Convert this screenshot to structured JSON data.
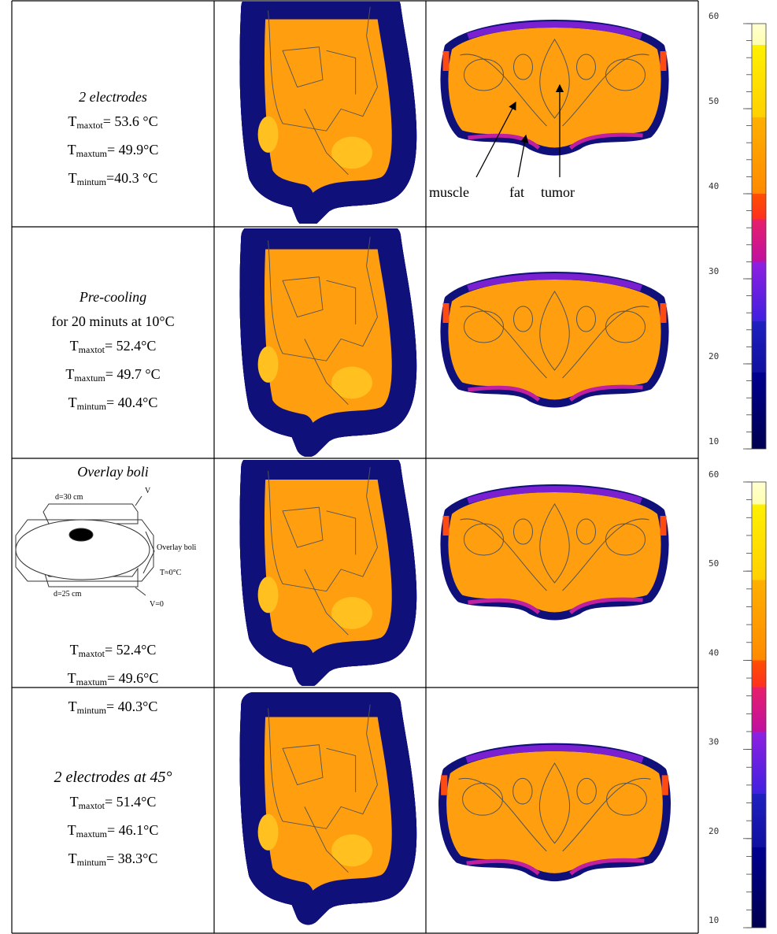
{
  "rows": [
    {
      "title": "2 electrodes",
      "lines": [
        {
          "symbol": "T",
          "subscript": "maxtot",
          "text": "= 53.6 °C"
        },
        {
          "symbol": "T",
          "subscript": "maxtum",
          "text": "= 49.9°C"
        },
        {
          "symbol": "T",
          "subscript": "mintum",
          "text": "=40.3 °C"
        }
      ]
    },
    {
      "title": "Pre-cooling",
      "subtitle": "for 20 minuts at 10°C",
      "lines": [
        {
          "symbol": "T",
          "subscript": "maxtot",
          "text": "= 52.4°C"
        },
        {
          "symbol": "T",
          "subscript": "maxtum",
          "text": "= 49.7 °C"
        },
        {
          "symbol": "T",
          "subscript": "mintum",
          "text": "= 40.4°C"
        }
      ]
    },
    {
      "title": "Overlay boli",
      "lines": [
        {
          "symbol": "T",
          "subscript": "maxtot",
          "text": "= 52.4°C"
        },
        {
          "symbol": "T",
          "subscript": "maxtum",
          "text": "= 49.6°C"
        },
        {
          "symbol": "T",
          "subscript": "mintum",
          "text": "= 40.3°C"
        }
      ]
    },
    {
      "title": "2 electrodes at 45°",
      "lines": [
        {
          "symbol": "T",
          "subscript": "maxtot",
          "text": "= 51.4°C"
        },
        {
          "symbol": "T",
          "subscript": "maxtum",
          "text": "= 46.1°C"
        },
        {
          "symbol": "T",
          "subscript": "mintum",
          "text": "= 38.3°C"
        }
      ]
    }
  ],
  "annotations": [
    "muscle",
    "fat",
    "tumor"
  ],
  "diagram": {
    "top": "d=30 cm",
    "top_v": "V",
    "side": "Overlay boli",
    "side_t": "T≈0°C",
    "bottom": "d=25 cm",
    "bottom_v": "V=0"
  },
  "colorbars": [
    {
      "ticks": [
        60,
        50,
        40,
        30,
        20,
        10
      ]
    },
    {
      "ticks": [
        60,
        50,
        40,
        30,
        20,
        10
      ]
    }
  ]
}
